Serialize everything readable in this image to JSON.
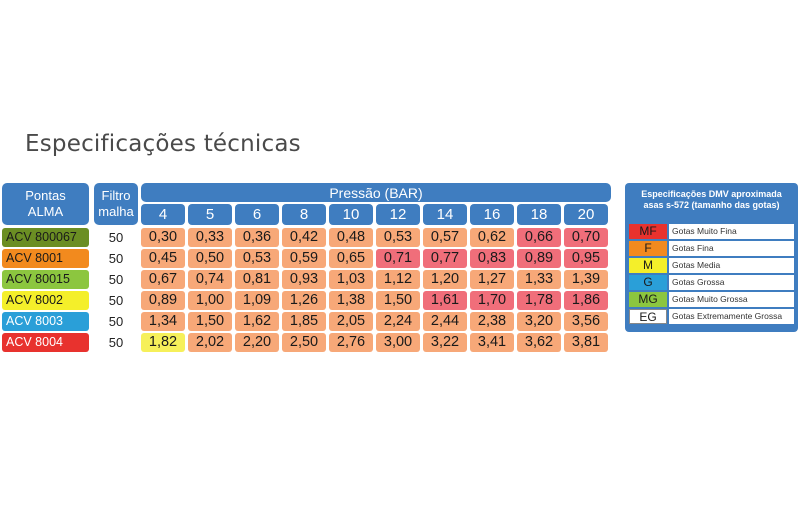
{
  "title": "Especificações técnicas",
  "table": {
    "pontas_header": [
      "Pontas",
      "ALMA"
    ],
    "filtro_header": [
      "Filtro",
      "malha"
    ],
    "pressao_header": "Pressão  (BAR)",
    "pressures": [
      "4",
      "5",
      "6",
      "8",
      "10",
      "12",
      "14",
      "16",
      "18",
      "20"
    ],
    "rows": [
      {
        "name": "ACV 800067",
        "label_color": "#6b8e23",
        "text_color": "#1a1a1a",
        "filtro": "50",
        "values": [
          "0,30",
          "0,33",
          "0,36",
          "0,42",
          "0,48",
          "0,53",
          "0,57",
          "0,62",
          "0,66",
          "0,70"
        ],
        "classes": [
          "F",
          "F",
          "F",
          "F",
          "F",
          "F",
          "F",
          "F",
          "MF",
          "MF"
        ]
      },
      {
        "name": "ACV 8001",
        "label_color": "#f28a1e",
        "text_color": "#1a1a1a",
        "filtro": "50",
        "values": [
          "0,45",
          "0,50",
          "0,53",
          "0,59",
          "0,65",
          "0,71",
          "0,77",
          "0,83",
          "0,89",
          "0,95"
        ],
        "classes": [
          "F",
          "F",
          "F",
          "F",
          "F",
          "MF",
          "MF",
          "MF",
          "MF",
          "MF"
        ]
      },
      {
        "name": "ACV 80015",
        "label_color": "#8cc63f",
        "text_color": "#1a1a1a",
        "filtro": "50",
        "values": [
          "0,67",
          "0,74",
          "0,81",
          "0,93",
          "1,03",
          "1,12",
          "1,20",
          "1,27",
          "1,33",
          "1,39"
        ],
        "classes": [
          "F",
          "F",
          "F",
          "F",
          "F",
          "F",
          "F",
          "F",
          "F",
          "F"
        ]
      },
      {
        "name": "ACV 8002",
        "label_color": "#f4ef2a",
        "text_color": "#1a1a1a",
        "filtro": "50",
        "values": [
          "0,89",
          "1,00",
          "1,09",
          "1,26",
          "1,38",
          "1,50",
          "1,61",
          "1,70",
          "1,78",
          "1,86"
        ],
        "classes": [
          "F",
          "F",
          "F",
          "F",
          "F",
          "F",
          "MF",
          "MF",
          "MF",
          "MF"
        ]
      },
      {
        "name": "ACV 8003",
        "label_color": "#2a9fd8",
        "text_color": "#ffffff",
        "filtro": "50",
        "values": [
          "1,34",
          "1,50",
          "1,62",
          "1,85",
          "2,05",
          "2,24",
          "2,44",
          "2,38",
          "3,20",
          "3,56"
        ],
        "classes": [
          "F",
          "F",
          "F",
          "F",
          "F",
          "F",
          "F",
          "F",
          "F",
          "F"
        ]
      },
      {
        "name": "ACV 8004",
        "label_color": "#e8322e",
        "text_color": "#ffffff",
        "filtro": "50",
        "values": [
          "1,82",
          "2,02",
          "2,20",
          "2,50",
          "2,76",
          "3,00",
          "3,22",
          "3,41",
          "3,62",
          "3,81"
        ],
        "classes": [
          "M",
          "F",
          "F",
          "F",
          "F",
          "F",
          "F",
          "F",
          "F",
          "F"
        ]
      }
    ],
    "class_colors": {
      "F": "#f7a878",
      "MF": "#f06e7a",
      "M": "#f6f05a"
    }
  },
  "legend": {
    "title": [
      "Especificações DMV aproximada",
      "asas s-572 (tamanho das gotas)"
    ],
    "items": [
      {
        "code": "MF",
        "label": "Gotas Muito Fina",
        "color": "#e8322e"
      },
      {
        "code": "F",
        "label": "Gotas Fina",
        "color": "#f28a1e"
      },
      {
        "code": "M",
        "label": "Gotas Media",
        "color": "#f4ef2a"
      },
      {
        "code": "G",
        "label": "Gotas Grossa",
        "color": "#2a9fd8"
      },
      {
        "code": "MG",
        "label": "Gotas Muito Grossa",
        "color": "#8cc63f"
      },
      {
        "code": "EG",
        "label": "Gotas Extremamente Grossa",
        "color": "#ffffff"
      }
    ]
  }
}
